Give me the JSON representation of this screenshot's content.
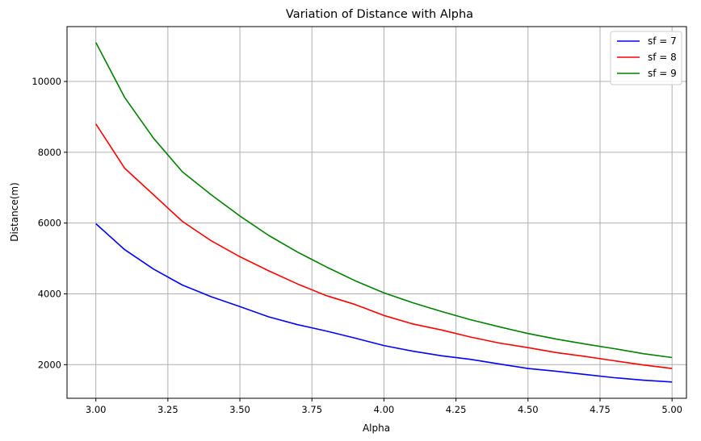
{
  "chart_data": {
    "type": "line",
    "title": "Variation of Distance with Alpha",
    "xlabel": "Alpha",
    "ylabel": "Distance(m)",
    "xlim": [
      2.9,
      5.05
    ],
    "ylim": [
      1050,
      11550
    ],
    "xticks": [
      "3.00",
      "3.25",
      "3.50",
      "3.75",
      "4.00",
      "4.25",
      "4.50",
      "4.75",
      "5.00"
    ],
    "yticks": [
      "2000",
      "4000",
      "6000",
      "8000",
      "10000"
    ],
    "grid": true,
    "legend_position": "top-right",
    "x": [
      3.0,
      3.1,
      3.2,
      3.3,
      3.4,
      3.5,
      3.6,
      3.7,
      3.8,
      3.9,
      4.0,
      4.1,
      4.2,
      4.3,
      4.4,
      4.5,
      4.6,
      4.7,
      4.8,
      4.9,
      5.0
    ],
    "series": [
      {
        "name": "sf = 7",
        "color": "#0000ff",
        "values": [
          5980,
          5250,
          4700,
          4250,
          3920,
          3640,
          3350,
          3130,
          2950,
          2750,
          2540,
          2380,
          2250,
          2150,
          2020,
          1890,
          1810,
          1720,
          1630,
          1560,
          1510
        ]
      },
      {
        "name": "sf = 8",
        "color": "#ff0000",
        "values": [
          8800,
          7550,
          6800,
          6050,
          5500,
          5050,
          4650,
          4280,
          3950,
          3700,
          3390,
          3150,
          2980,
          2780,
          2610,
          2480,
          2340,
          2230,
          2110,
          1990,
          1890
        ]
      },
      {
        "name": "sf = 9",
        "color": "#008000",
        "values": [
          11100,
          9550,
          8400,
          7450,
          6800,
          6200,
          5650,
          5180,
          4760,
          4370,
          4030,
          3750,
          3500,
          3270,
          3070,
          2880,
          2720,
          2580,
          2450,
          2310,
          2200
        ]
      }
    ]
  }
}
